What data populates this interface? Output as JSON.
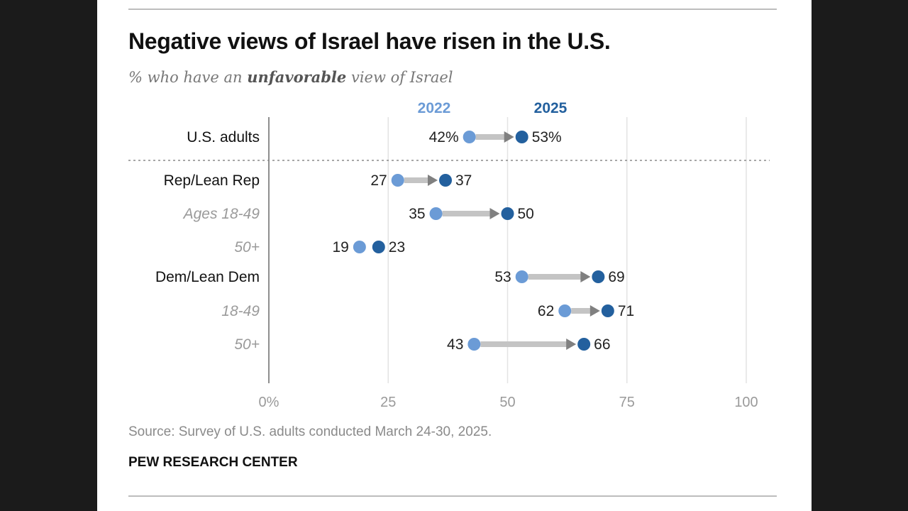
{
  "header": {
    "title": "Negative views of Israel have risen in the U.S.",
    "subtitle_pre": "% who have an ",
    "subtitle_emph": "unfavorable",
    "subtitle_post": " view of Israel"
  },
  "footer": {
    "source": "Source: Survey of U.S. adults conducted March 24-30, 2025.",
    "brand": "PEW RESEARCH CENTER"
  },
  "colors": {
    "series_2022": "#6b9bd6",
    "series_2025": "#23609e",
    "connector": "#c4c4c4",
    "arrow": "#808080",
    "grid": "#e3e3e3",
    "axis": "#8e8e8e",
    "label_bold": "#111111",
    "label_italic": "#9a9a9a"
  },
  "chart_data": {
    "type": "dumbbell",
    "title": "Negative views of Israel have risen in the U.S.",
    "ylabel": "% who have an unfavorable view of Israel",
    "xlim": [
      0,
      100
    ],
    "ticks": [
      0,
      25,
      50,
      75,
      100
    ],
    "tick_labels": [
      "0%",
      "25",
      "50",
      "75",
      "100"
    ],
    "legend": [
      "2022",
      "2025"
    ],
    "rows": [
      {
        "label": "U.S. adults",
        "style": "bold",
        "v2022": 42,
        "v2025": 53,
        "lab2022": "42%",
        "lab2025": "53%"
      },
      {
        "label": "Rep/Lean Rep",
        "style": "bold",
        "v2022": 27,
        "v2025": 37,
        "lab2022": "27",
        "lab2025": "37"
      },
      {
        "label": "Ages 18-49",
        "style": "italic",
        "v2022": 35,
        "v2025": 50,
        "lab2022": "35",
        "lab2025": "50"
      },
      {
        "label": "50+",
        "style": "italic",
        "v2022": 19,
        "v2025": 23,
        "lab2022": "19",
        "lab2025": "23"
      },
      {
        "label": "Dem/Lean Dem",
        "style": "bold",
        "v2022": 53,
        "v2025": 69,
        "lab2022": "53",
        "lab2025": "69"
      },
      {
        "label": "18-49",
        "style": "italic",
        "v2022": 62,
        "v2025": 71,
        "lab2022": "62",
        "lab2025": "71"
      },
      {
        "label": "50+",
        "style": "italic",
        "v2022": 43,
        "v2025": 66,
        "lab2022": "43",
        "lab2025": "66"
      }
    ]
  }
}
